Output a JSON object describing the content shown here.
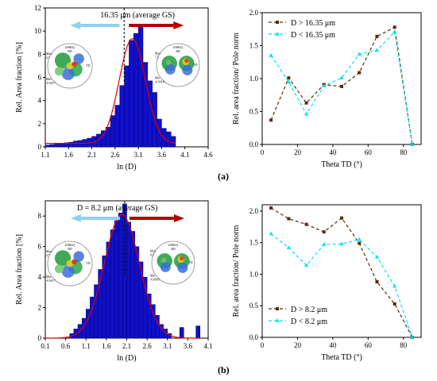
{
  "figure": {
    "panel_labels": [
      "(a)",
      "(b)"
    ]
  },
  "colors": {
    "bar_fill": "#1010c8",
    "bar_stroke": "#000080",
    "fit_line": "#e00000",
    "series_large": "#5a2a0a",
    "series_small": "#00e5ee",
    "arrow_left": "#8fd0f0",
    "arrow_right": "#b00000"
  },
  "chart_data": [
    {
      "id": "a-hist",
      "type": "bar",
      "xlabel": "ln (D)",
      "ylabel": "Rel. Area fraction [%]",
      "xlim": [
        1.1,
        4.6
      ],
      "ylim": [
        0,
        12
      ],
      "xticks": [
        "1.1",
        "1.6",
        "2.1",
        "2.6",
        "3.1",
        "3.6",
        "4.1",
        "4.6"
      ],
      "yticks": [
        "0",
        "2",
        "4",
        "6",
        "8",
        "10",
        "12"
      ],
      "bin_width": 0.1,
      "bin_starts": [
        1.1,
        1.2,
        1.3,
        1.4,
        1.5,
        1.6,
        1.7,
        1.8,
        1.9,
        2.0,
        2.1,
        2.2,
        2.3,
        2.4,
        2.5,
        2.6,
        2.7,
        2.8,
        2.9,
        3.0,
        3.1,
        3.2,
        3.3,
        3.4,
        3.5,
        3.6,
        3.7,
        3.8
      ],
      "values": [
        0.15,
        0.2,
        0.25,
        0.3,
        0.35,
        0.4,
        0.5,
        0.55,
        0.65,
        0.75,
        0.9,
        1.1,
        1.4,
        1.7,
        2.7,
        3.6,
        5.3,
        7.0,
        9.2,
        9.8,
        10.4,
        7.3,
        5.7,
        4.7,
        2.4,
        1.6,
        1.3,
        0.9
      ],
      "fit": {
        "type": "gaussian",
        "mean": 2.97,
        "sigma": 0.28,
        "peak": 9.35,
        "baseline": 0.3
      },
      "vline": 2.795,
      "annotation": "16.35 μm (average GS)",
      "pole_figures": [
        {
          "title": "(0002)",
          "rd": "RD",
          "td": "TD",
          "max_label": "Max:",
          "max": "4.7",
          "min_label": "Min:",
          "min": "-0.0017"
        },
        {
          "title": "(0002)",
          "rd": "RD",
          "td": "TD",
          "max_label": "Max:",
          "max": "7.3",
          "min_label": "Min:",
          "min": "-0.0018"
        }
      ]
    },
    {
      "id": "a-line",
      "type": "line",
      "xlabel": "Theta TD (°)",
      "ylabel": "Rel. area fraction/ Pole norm",
      "xlim": [
        0,
        90
      ],
      "ylim": [
        0,
        2.0
      ],
      "xticks": [
        "0",
        "20",
        "40",
        "60",
        "80"
      ],
      "yticks": [
        "0.0",
        "0.5",
        "1.0",
        "1.5",
        "2.0"
      ],
      "x": [
        5,
        15,
        25,
        35,
        45,
        55,
        65,
        75,
        85
      ],
      "series": [
        {
          "name": "D > 16.35 μm",
          "values": [
            0.37,
            1.01,
            0.63,
            0.91,
            0.88,
            1.09,
            1.64,
            1.78,
            0.0
          ]
        },
        {
          "name": "D <  16.35 μm",
          "values": [
            1.35,
            0.95,
            0.46,
            0.89,
            1.01,
            1.37,
            1.43,
            1.71,
            0.0
          ]
        }
      ],
      "legend_position": "top-left"
    },
    {
      "id": "b-hist",
      "type": "bar",
      "xlabel": "ln (D)",
      "ylabel": "Rel. Area fraction [%]",
      "xlim": [
        0.1,
        4.1
      ],
      "ylim": [
        0,
        9
      ],
      "xticks": [
        "0.1",
        "0.6",
        "1.1",
        "1.6",
        "2.1",
        "2.6",
        "3.1",
        "3.6",
        "4.1"
      ],
      "yticks": [
        "0",
        "2",
        "4",
        "6",
        "8"
      ],
      "bin_width": 0.1,
      "bin_starts": [
        0.7,
        0.8,
        0.9,
        1.0,
        1.1,
        1.2,
        1.3,
        1.4,
        1.5,
        1.6,
        1.7,
        1.8,
        1.9,
        2.0,
        2.1,
        2.2,
        2.3,
        2.4,
        2.5,
        2.6,
        2.7,
        2.8,
        2.9,
        3.0,
        3.1,
        3.4,
        3.8
      ],
      "values": [
        0.3,
        0.6,
        0.9,
        1.3,
        1.9,
        2.7,
        3.5,
        4.5,
        5.4,
        6.3,
        7.1,
        7.7,
        8.2,
        8.8,
        7.6,
        7.0,
        6.0,
        5.0,
        4.0,
        2.9,
        2.2,
        1.5,
        0.9,
        0.6,
        0.3,
        0.7,
        0.8
      ],
      "fit": {
        "type": "gaussian",
        "mean": 1.98,
        "sigma": 0.43,
        "peak": 8.1,
        "baseline": 0.0
      },
      "vline": 2.05,
      "annotation": "D = 8.2 μm (average GS)",
      "pole_figures": [
        {
          "title": "(0002)",
          "rd": "RD",
          "td": "TD",
          "max_label": "Max:",
          "max": "4.7",
          "min_label": "Min:",
          "min": "-0.0017"
        },
        {
          "title": "(0002)",
          "rd": "RD",
          "td": "TD",
          "max_label": "Max:",
          "max": "8.1",
          "min_label": "Min:",
          "min": "-0.0065"
        }
      ]
    },
    {
      "id": "b-line",
      "type": "line",
      "xlabel": "Theta TD (°)",
      "ylabel": "Rel. area fraction/ Pole norm",
      "xlim": [
        0,
        90
      ],
      "ylim": [
        0,
        2.1
      ],
      "xticks": [
        "0",
        "20",
        "40",
        "60",
        "80"
      ],
      "yticks": [
        "0.0",
        "0.5",
        "1.0",
        "1.5",
        "2.0"
      ],
      "x": [
        5,
        15,
        25,
        35,
        45,
        55,
        65,
        75,
        85
      ],
      "series": [
        {
          "name": "D > 8.2 μm",
          "values": [
            2.05,
            1.88,
            1.79,
            1.67,
            1.89,
            1.49,
            0.88,
            0.53,
            0.0
          ]
        },
        {
          "name": "D < 8.2 μm",
          "values": [
            1.64,
            1.42,
            1.14,
            1.47,
            1.48,
            1.55,
            1.27,
            0.81,
            0.0
          ]
        }
      ],
      "legend_position": "bottom-left"
    }
  ]
}
